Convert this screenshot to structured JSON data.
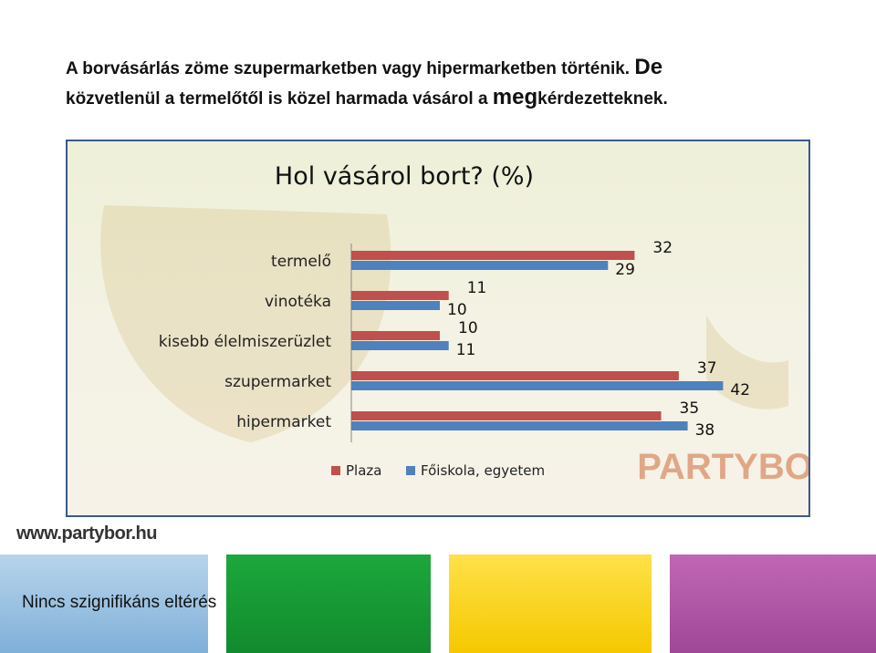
{
  "slide": {
    "headline_part1": "A borvásárlás zöme szupermarketben vagy hipermarketben történik.",
    "headline_part2": "De",
    "headline_part3": "közvetlenül a termelőtől is közel harmada vásárol a",
    "headline_part4": "meg",
    "headline_part5": "kérdezetteknek.",
    "footer_note": "Nincs szignifikáns eltérés",
    "site_logo": "www.partybor.hu",
    "brand_watermark": "PARTYBOR"
  },
  "colors": {
    "plaza": "#c0504d",
    "foiskola": "#4f81bd",
    "frame_border": "#3a5a8c"
  },
  "chart_data": {
    "type": "bar",
    "orientation": "horizontal",
    "title": "Hol vásárol bort? (%)",
    "categories": [
      "termelő",
      "vinotéka",
      "kisebb élelmiszerüzlet",
      "szupermarket",
      "hipermarket"
    ],
    "series": [
      {
        "name": "Plaza",
        "values": [
          32,
          11,
          10,
          37,
          35
        ]
      },
      {
        "name": "Főiskola, egyetem",
        "values": [
          29,
          10,
          11,
          42,
          38
        ]
      }
    ],
    "xlim": [
      0,
      50
    ],
    "grid": false,
    "legend": "bottom"
  }
}
